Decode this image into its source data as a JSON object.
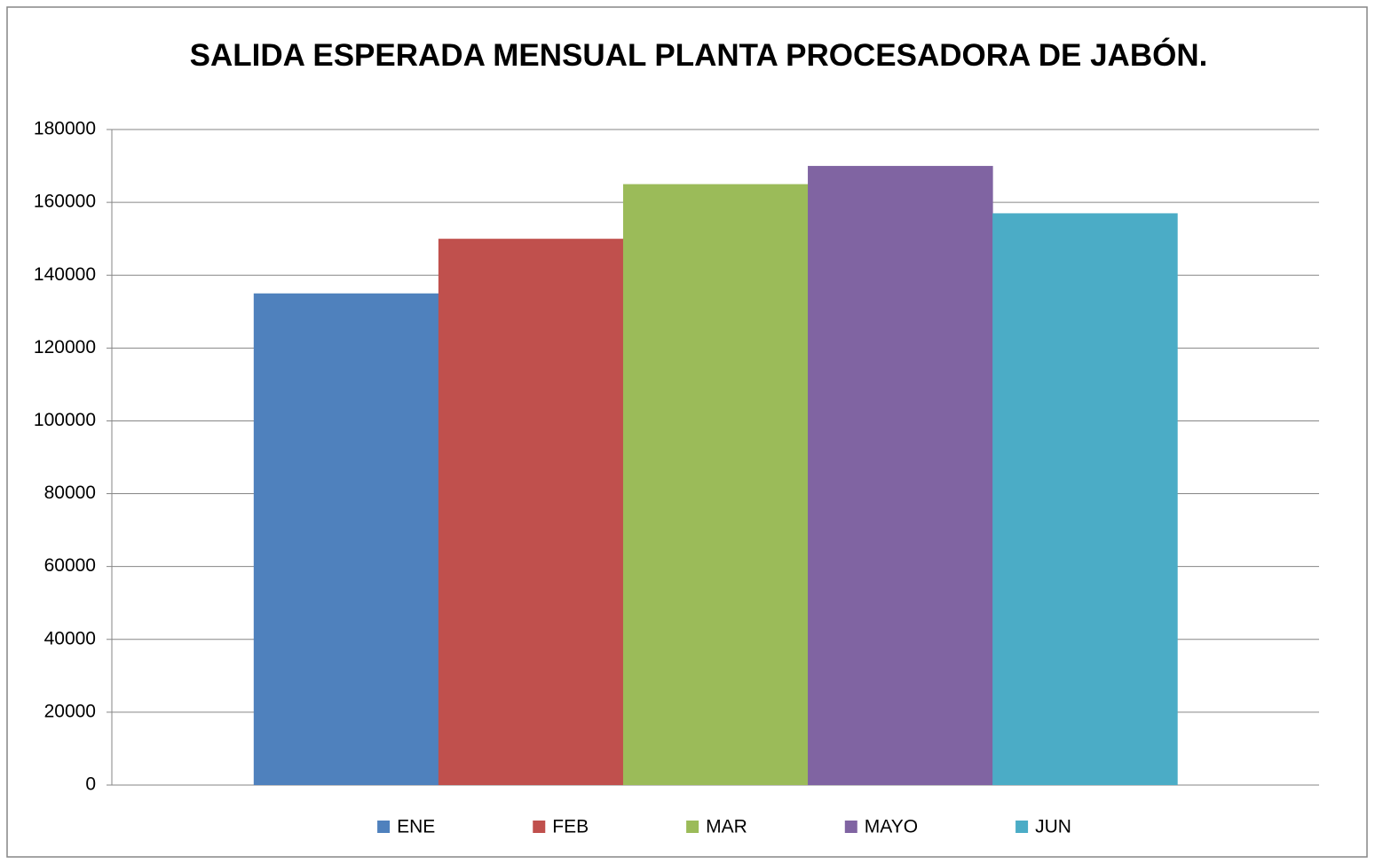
{
  "chart_data": {
    "type": "bar",
    "title": "SALIDA ESPERADA MENSUAL PLANTA PROCESADORA DE JABÓN.",
    "categories": [
      null
    ],
    "series": [
      {
        "name": "ENE",
        "color": "#4f81bd",
        "values": [
          135000
        ]
      },
      {
        "name": "FEB",
        "color": "#c0504d",
        "values": [
          150000
        ]
      },
      {
        "name": "MAR",
        "color": "#9bbb59",
        "values": [
          165000
        ]
      },
      {
        "name": "MAYO",
        "color": "#8064a2",
        "values": [
          170000
        ]
      },
      {
        "name": "JUN",
        "color": "#4bacc6",
        "values": [
          157000
        ]
      }
    ],
    "ylim": [
      0,
      180000
    ],
    "yticks": [
      0,
      20000,
      40000,
      60000,
      80000,
      100000,
      120000,
      140000,
      160000,
      180000
    ],
    "grid": true,
    "legend": "bottom"
  }
}
